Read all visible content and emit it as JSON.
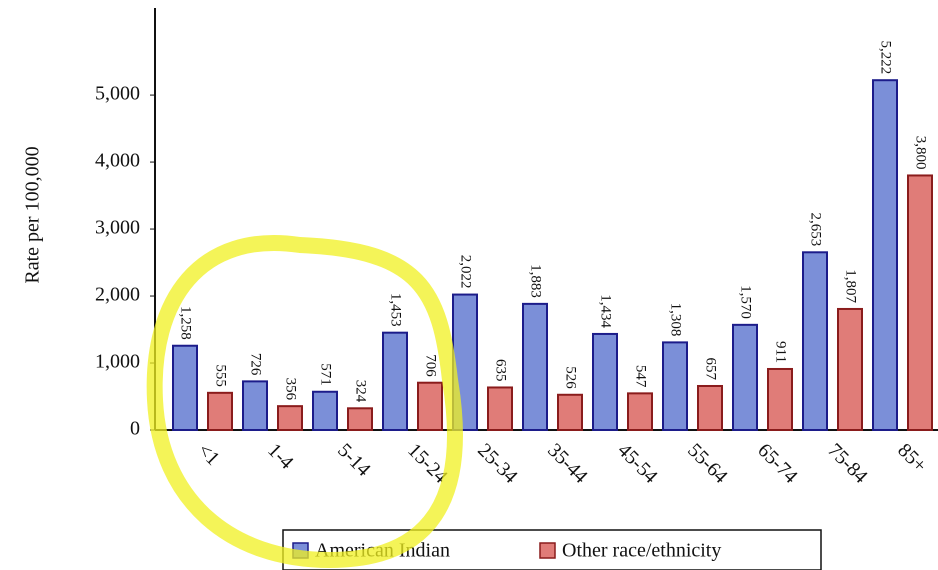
{
  "chart_data": {
    "type": "bar",
    "y_label": "Rate per 100,000",
    "categories": [
      "<1",
      "1-4",
      "5-14",
      "15-24",
      "25-34",
      "35-44",
      "45-54",
      "55-64",
      "65-74",
      "75-84",
      "85+"
    ],
    "series": [
      {
        "name": "American Indian",
        "color": "#7b8fd8",
        "edge": "#1c1c8a",
        "values": [
          1258,
          726,
          571,
          1453,
          2022,
          1883,
          1434,
          1308,
          1570,
          2653,
          5222
        ],
        "value_labels": [
          "1,258",
          "726",
          "571",
          "1,453",
          "2,022",
          "1,883",
          "1,434",
          "1,308",
          "1,570",
          "2,653",
          "5,222"
        ]
      },
      {
        "name": "Other race/ethnicity",
        "color": "#e07c78",
        "edge": "#8a1c1c",
        "values": [
          555,
          356,
          324,
          706,
          635,
          526,
          547,
          657,
          911,
          1807,
          3800
        ],
        "value_labels": [
          "555",
          "356",
          "324",
          "706",
          "635",
          "526",
          "547",
          "657",
          "911",
          "1,807",
          "3,800"
        ]
      }
    ],
    "ylim": [
      0,
      6300
    ],
    "yticks": [
      0,
      {
        "value": 1000,
        "label": "1,000"
      },
      {
        "value": 2000,
        "label": "2,000"
      },
      {
        "value": 3000,
        "label": "3,000"
      },
      {
        "value": 4000,
        "label": "4,000"
      },
      {
        "value": 5000,
        "label": "5,000"
      }
    ],
    "grid": false
  }
}
